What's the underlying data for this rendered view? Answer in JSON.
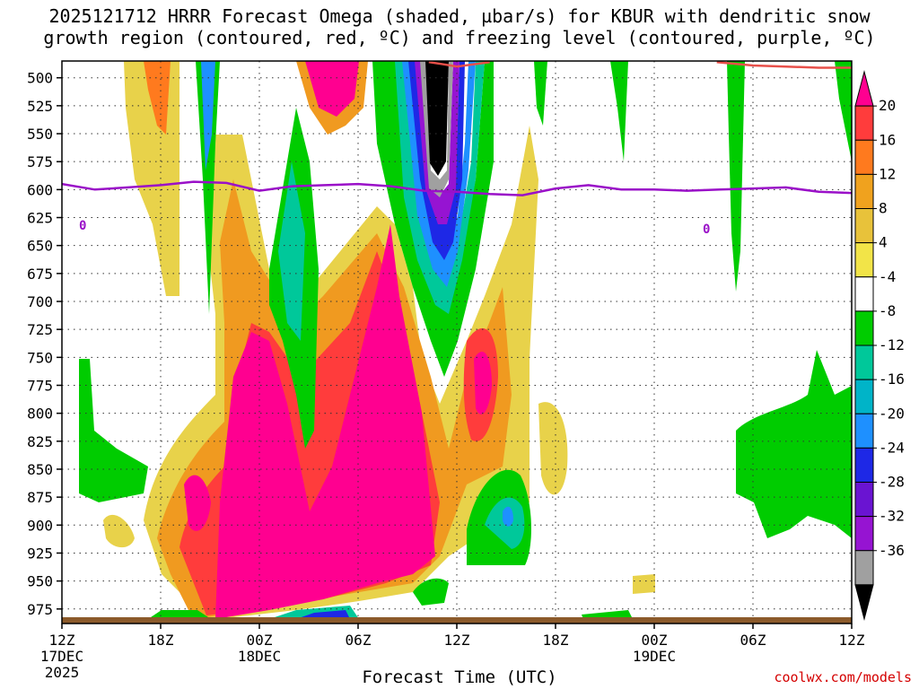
{
  "chart_data": {
    "type": "heatmap",
    "title_line1": "2025121712 HRRR Forecast Omega (shaded, µbar/s) for KBUR with dendritic snow",
    "title_line2": "growth region (contoured, red, ºC) and freezing level (contoured, purple, ºC)",
    "xlabel": "Forecast Time (UTC)",
    "credit": "coolwx.com/models",
    "y_ticks": [
      "500",
      "525",
      "550",
      "575",
      "600",
      "625",
      "650",
      "675",
      "700",
      "725",
      "750",
      "775",
      "800",
      "825",
      "850",
      "875",
      "900",
      "925",
      "950",
      "975"
    ],
    "y_range_hpa": [
      485,
      988
    ],
    "x_ticks": [
      {
        "label": "12Z",
        "sub1": "17DEC",
        "sub2": "2025",
        "hour": 0
      },
      {
        "label": "18Z",
        "sub1": "",
        "sub2": "",
        "hour": 6
      },
      {
        "label": "00Z",
        "sub1": "18DEC",
        "sub2": "",
        "hour": 12
      },
      {
        "label": "06Z",
        "sub1": "",
        "sub2": "",
        "hour": 18
      },
      {
        "label": "12Z",
        "sub1": "",
        "sub2": "",
        "hour": 24
      },
      {
        "label": "18Z",
        "sub1": "",
        "sub2": "",
        "hour": 30
      },
      {
        "label": "00Z",
        "sub1": "19DEC",
        "sub2": "",
        "hour": 36
      },
      {
        "label": "06Z",
        "sub1": "",
        "sub2": "",
        "hour": 42
      },
      {
        "label": "12Z",
        "sub1": "",
        "sub2": "",
        "hour": 48
      }
    ],
    "x_range_hours": [
      0,
      48
    ],
    "colorbar_labels": [
      "20",
      "16",
      "12",
      "8",
      "4",
      "-4",
      "-8",
      "-12",
      "-16",
      "-20",
      "-24",
      "-28",
      "-32",
      "-36"
    ],
    "colorbar_colors": [
      "#ff0090",
      "#ff3c3c",
      "#ff7a1e",
      "#f0a21e",
      "#e8c23a",
      "#f2e448",
      "#ffffff",
      "#00cc00",
      "#00c89a",
      "#00b4c8",
      "#1e90ff",
      "#1e28e6",
      "#6a14d2",
      "#9614d2",
      "#a0a0a0",
      "#000000"
    ],
    "freezing_level_label": "0",
    "freezing_level": [
      {
        "hour": 0,
        "hpa": 595
      },
      {
        "hour": 2,
        "hpa": 600
      },
      {
        "hour": 4,
        "hpa": 598
      },
      {
        "hour": 6,
        "hpa": 596
      },
      {
        "hour": 8,
        "hpa": 593
      },
      {
        "hour": 10,
        "hpa": 594
      },
      {
        "hour": 12,
        "hpa": 601
      },
      {
        "hour": 14,
        "hpa": 597
      },
      {
        "hour": 16,
        "hpa": 596
      },
      {
        "hour": 18,
        "hpa": 595
      },
      {
        "hour": 20,
        "hpa": 597
      },
      {
        "hour": 22,
        "hpa": 601
      },
      {
        "hour": 24,
        "hpa": 602
      },
      {
        "hour": 26,
        "hpa": 604
      },
      {
        "hour": 28,
        "hpa": 605
      },
      {
        "hour": 30,
        "hpa": 599
      },
      {
        "hour": 32,
        "hpa": 596
      },
      {
        "hour": 34,
        "hpa": 600
      },
      {
        "hour": 36,
        "hpa": 600
      },
      {
        "hour": 38,
        "hpa": 601
      },
      {
        "hour": 40,
        "hpa": 600
      },
      {
        "hour": 42,
        "hpa": 599
      },
      {
        "hour": 44,
        "hpa": 598
      },
      {
        "hour": 46,
        "hpa": 602
      },
      {
        "hour": 48,
        "hpa": 603
      }
    ],
    "snow_growth_contour": [
      {
        "hour": 22.3,
        "hpa": 486
      },
      {
        "hour": 23.2,
        "hpa": 488
      },
      {
        "hour": 24,
        "hpa": 490
      },
      {
        "hour": 25,
        "hpa": 488
      },
      {
        "hour": 26,
        "hpa": 486
      }
    ],
    "snow_growth_contour2": [
      {
        "hour": 39.8,
        "hpa": 486
      },
      {
        "hour": 42,
        "hpa": 489
      },
      {
        "hour": 44,
        "hpa": 490
      },
      {
        "hour": 46,
        "hpa": 491
      },
      {
        "hour": 48,
        "hpa": 491
      }
    ]
  }
}
